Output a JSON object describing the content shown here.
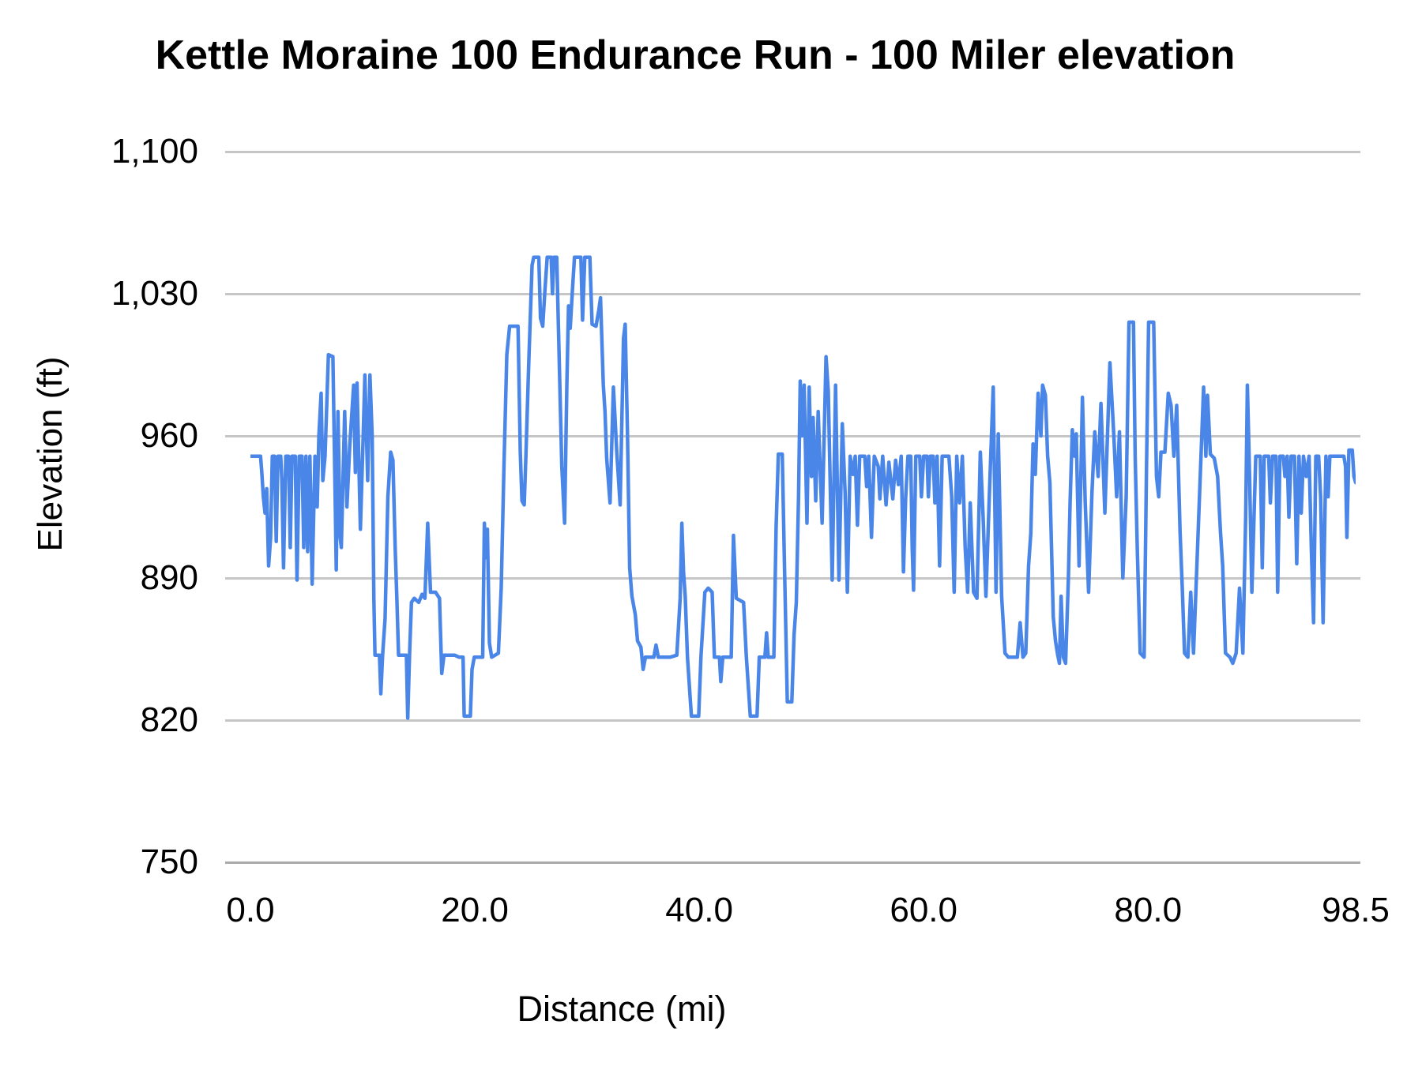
{
  "title": "Kettle Moraine 100 Endurance Run - 100 Miler elevation",
  "chart_data": {
    "type": "line",
    "title": "Kettle Moraine 100 Endurance Run - 100 Miler elevation",
    "xlabel": "Distance (mi)",
    "ylabel": "Elevation (ft)",
    "xlim": [
      0,
      98.5
    ],
    "ylim": [
      750,
      1100
    ],
    "grid": "horizontal",
    "legend": "none",
    "series_name": "elevation",
    "series_color": "#4a86e8",
    "grid_color": "#c6c6c6",
    "axis_text_color": "#000000",
    "y_ticks": [
      {
        "label": "1,100",
        "ft": 1100
      },
      {
        "label": "1,030",
        "ft": 1030
      },
      {
        "label": "960",
        "ft": 960
      },
      {
        "label": "890",
        "ft": 890
      },
      {
        "label": "820",
        "ft": 820
      },
      {
        "label": "750",
        "ft": 750
      }
    ],
    "x_ticks": [
      {
        "label": "0.0",
        "mi": 0
      },
      {
        "label": "20.0",
        "mi": 20
      },
      {
        "label": "40.0",
        "mi": 40
      },
      {
        "label": "60.0",
        "mi": 60
      },
      {
        "label": "80.0",
        "mi": 80
      },
      {
        "label": "98.5",
        "mi": 98.5
      }
    ],
    "points": [
      [
        0,
        950
      ],
      [
        0.9,
        950
      ],
      [
        1.0,
        943
      ],
      [
        1.15,
        930
      ],
      [
        1.3,
        922
      ],
      [
        1.45,
        934
      ],
      [
        1.62,
        896
      ],
      [
        1.8,
        910
      ],
      [
        1.95,
        950
      ],
      [
        2.15,
        950
      ],
      [
        2.3,
        908
      ],
      [
        2.45,
        950
      ],
      [
        2.7,
        950
      ],
      [
        2.8,
        938
      ],
      [
        2.95,
        895
      ],
      [
        3.15,
        950
      ],
      [
        3.4,
        950
      ],
      [
        3.55,
        905
      ],
      [
        3.7,
        950
      ],
      [
        4.0,
        950
      ],
      [
        4.15,
        889
      ],
      [
        4.35,
        950
      ],
      [
        4.6,
        950
      ],
      [
        4.75,
        905
      ],
      [
        4.95,
        950
      ],
      [
        5.1,
        903
      ],
      [
        5.3,
        950
      ],
      [
        5.5,
        887
      ],
      [
        5.75,
        950
      ],
      [
        5.95,
        925
      ],
      [
        6.1,
        960
      ],
      [
        6.3,
        981
      ],
      [
        6.45,
        938
      ],
      [
        6.65,
        950
      ],
      [
        6.95,
        1000
      ],
      [
        7.35,
        999
      ],
      [
        7.55,
        930
      ],
      [
        7.65,
        894
      ],
      [
        7.8,
        972
      ],
      [
        8.0,
        910
      ],
      [
        8.1,
        905
      ],
      [
        8.4,
        972
      ],
      [
        8.6,
        925
      ],
      [
        8.85,
        955
      ],
      [
        9.2,
        985
      ],
      [
        9.35,
        942
      ],
      [
        9.5,
        986
      ],
      [
        9.8,
        914
      ],
      [
        10.05,
        960
      ],
      [
        10.2,
        990
      ],
      [
        10.45,
        938
      ],
      [
        10.65,
        990
      ],
      [
        10.85,
        960
      ],
      [
        11.0,
        880
      ],
      [
        11.1,
        852
      ],
      [
        11.5,
        852
      ],
      [
        11.62,
        833
      ],
      [
        11.78,
        852
      ],
      [
        12.0,
        870
      ],
      [
        12.25,
        930
      ],
      [
        12.5,
        952
      ],
      [
        12.7,
        948
      ],
      [
        12.9,
        905
      ],
      [
        13.05,
        880
      ],
      [
        13.2,
        852
      ],
      [
        13.9,
        852
      ],
      [
        14.02,
        821
      ],
      [
        14.18,
        852
      ],
      [
        14.35,
        878
      ],
      [
        14.6,
        880
      ],
      [
        15.0,
        878
      ],
      [
        15.3,
        882
      ],
      [
        15.55,
        880
      ],
      [
        15.8,
        917
      ],
      [
        16.05,
        883
      ],
      [
        16.5,
        883
      ],
      [
        16.85,
        880
      ],
      [
        17.05,
        843
      ],
      [
        17.25,
        852
      ],
      [
        18.2,
        852
      ],
      [
        18.6,
        851
      ],
      [
        18.95,
        851
      ],
      [
        19.05,
        822
      ],
      [
        19.6,
        822
      ],
      [
        19.75,
        845
      ],
      [
        19.95,
        851
      ],
      [
        20.7,
        851
      ],
      [
        20.85,
        917
      ],
      [
        21.0,
        900
      ],
      [
        21.12,
        914
      ],
      [
        21.3,
        858
      ],
      [
        21.5,
        851
      ],
      [
        22.1,
        853
      ],
      [
        22.35,
        885
      ],
      [
        22.6,
        946
      ],
      [
        22.85,
        1000
      ],
      [
        23.1,
        1014
      ],
      [
        23.85,
        1014
      ],
      [
        24.05,
        952
      ],
      [
        24.2,
        928
      ],
      [
        24.4,
        926
      ],
      [
        24.55,
        950
      ],
      [
        24.8,
        995
      ],
      [
        25.1,
        1044
      ],
      [
        25.25,
        1048
      ],
      [
        25.7,
        1048
      ],
      [
        25.85,
        1018
      ],
      [
        26.05,
        1014
      ],
      [
        26.25,
        1032
      ],
      [
        26.45,
        1048
      ],
      [
        26.8,
        1048
      ],
      [
        26.92,
        1030
      ],
      [
        27.05,
        1048
      ],
      [
        27.3,
        1048
      ],
      [
        27.5,
        1002
      ],
      [
        27.75,
        945
      ],
      [
        28.0,
        917
      ],
      [
        28.2,
        985
      ],
      [
        28.35,
        1024
      ],
      [
        28.5,
        1013
      ],
      [
        28.7,
        1032
      ],
      [
        28.88,
        1048
      ],
      [
        29.45,
        1048
      ],
      [
        29.6,
        1017
      ],
      [
        29.8,
        1048
      ],
      [
        30.25,
        1048
      ],
      [
        30.45,
        1015
      ],
      [
        30.8,
        1014
      ],
      [
        31.05,
        1022
      ],
      [
        31.2,
        1028
      ],
      [
        31.45,
        985
      ],
      [
        31.6,
        972
      ],
      [
        31.75,
        949
      ],
      [
        32.05,
        927
      ],
      [
        32.35,
        984
      ],
      [
        32.65,
        952
      ],
      [
        32.95,
        926
      ],
      [
        33.25,
        1008
      ],
      [
        33.4,
        1015
      ],
      [
        33.6,
        962
      ],
      [
        33.8,
        895
      ],
      [
        34.0,
        881
      ],
      [
        34.3,
        872
      ],
      [
        34.5,
        859
      ],
      [
        34.8,
        856
      ],
      [
        35.0,
        845
      ],
      [
        35.2,
        851
      ],
      [
        35.95,
        851
      ],
      [
        36.15,
        857
      ],
      [
        36.35,
        851
      ],
      [
        37.4,
        851
      ],
      [
        38.0,
        852
      ],
      [
        38.3,
        880
      ],
      [
        38.45,
        917
      ],
      [
        38.6,
        893
      ],
      [
        38.75,
        881
      ],
      [
        38.95,
        851
      ],
      [
        39.3,
        822
      ],
      [
        39.95,
        822
      ],
      [
        40.15,
        851
      ],
      [
        40.5,
        883
      ],
      [
        40.8,
        885
      ],
      [
        41.15,
        883
      ],
      [
        41.35,
        851
      ],
      [
        41.8,
        851
      ],
      [
        41.92,
        839
      ],
      [
        42.1,
        851
      ],
      [
        42.85,
        851
      ],
      [
        43.05,
        911
      ],
      [
        43.3,
        880
      ],
      [
        43.95,
        878
      ],
      [
        44.2,
        851
      ],
      [
        44.55,
        822
      ],
      [
        45.15,
        822
      ],
      [
        45.35,
        851
      ],
      [
        45.85,
        851
      ],
      [
        46.0,
        863
      ],
      [
        46.15,
        851
      ],
      [
        46.65,
        851
      ],
      [
        46.85,
        915
      ],
      [
        47.05,
        951
      ],
      [
        47.4,
        951
      ],
      [
        47.6,
        895
      ],
      [
        47.85,
        829
      ],
      [
        48.25,
        829
      ],
      [
        48.45,
        862
      ],
      [
        48.65,
        878
      ],
      [
        48.85,
        930
      ],
      [
        49.0,
        987
      ],
      [
        49.15,
        960
      ],
      [
        49.35,
        985
      ],
      [
        49.6,
        917
      ],
      [
        49.8,
        984
      ],
      [
        50.0,
        940
      ],
      [
        50.15,
        969
      ],
      [
        50.38,
        928
      ],
      [
        50.6,
        972
      ],
      [
        50.95,
        917
      ],
      [
        51.3,
        999
      ],
      [
        51.5,
        982
      ],
      [
        51.85,
        889
      ],
      [
        52.15,
        985
      ],
      [
        52.45,
        889
      ],
      [
        52.75,
        966
      ],
      [
        53.0,
        932
      ],
      [
        53.2,
        883
      ],
      [
        53.45,
        950
      ],
      [
        53.7,
        941
      ],
      [
        53.9,
        950
      ],
      [
        54.1,
        916
      ],
      [
        54.3,
        950
      ],
      [
        54.75,
        950
      ],
      [
        54.92,
        935
      ],
      [
        55.1,
        950
      ],
      [
        55.35,
        910
      ],
      [
        55.6,
        950
      ],
      [
        55.95,
        945
      ],
      [
        56.1,
        929
      ],
      [
        56.35,
        950
      ],
      [
        56.65,
        926
      ],
      [
        56.9,
        947
      ],
      [
        57.25,
        929
      ],
      [
        57.5,
        948
      ],
      [
        57.75,
        936
      ],
      [
        58.0,
        950
      ],
      [
        58.2,
        893
      ],
      [
        58.4,
        930
      ],
      [
        58.6,
        950
      ],
      [
        58.85,
        950
      ],
      [
        58.98,
        905
      ],
      [
        59.1,
        884
      ],
      [
        59.3,
        950
      ],
      [
        59.65,
        950
      ],
      [
        59.8,
        930
      ],
      [
        60.0,
        950
      ],
      [
        60.3,
        950
      ],
      [
        60.42,
        930
      ],
      [
        60.6,
        950
      ],
      [
        60.85,
        950
      ],
      [
        61.0,
        927
      ],
      [
        61.2,
        950
      ],
      [
        61.42,
        896
      ],
      [
        61.65,
        950
      ],
      [
        62.25,
        950
      ],
      [
        62.5,
        930
      ],
      [
        62.72,
        883
      ],
      [
        62.95,
        950
      ],
      [
        63.2,
        927
      ],
      [
        63.45,
        950
      ],
      [
        63.7,
        905
      ],
      [
        63.92,
        883
      ],
      [
        64.15,
        927
      ],
      [
        64.45,
        883
      ],
      [
        64.75,
        880
      ],
      [
        65.05,
        952
      ],
      [
        65.3,
        920
      ],
      [
        65.55,
        881
      ],
      [
        65.85,
        930
      ],
      [
        66.2,
        984
      ],
      [
        66.45,
        883
      ],
      [
        66.65,
        961
      ],
      [
        66.95,
        881
      ],
      [
        67.25,
        853
      ],
      [
        67.55,
        851
      ],
      [
        68.35,
        851
      ],
      [
        68.6,
        868
      ],
      [
        68.85,
        851
      ],
      [
        69.1,
        853
      ],
      [
        69.35,
        896
      ],
      [
        69.55,
        912
      ],
      [
        69.75,
        956
      ],
      [
        69.95,
        941
      ],
      [
        70.2,
        981
      ],
      [
        70.45,
        960
      ],
      [
        70.6,
        985
      ],
      [
        70.85,
        980
      ],
      [
        71.05,
        950
      ],
      [
        71.25,
        937
      ],
      [
        71.55,
        871
      ],
      [
        71.75,
        859
      ],
      [
        71.95,
        852
      ],
      [
        72.1,
        848
      ],
      [
        72.25,
        881
      ],
      [
        72.45,
        851
      ],
      [
        72.65,
        848
      ],
      [
        72.9,
        890
      ],
      [
        73.05,
        927
      ],
      [
        73.25,
        963
      ],
      [
        73.45,
        950
      ],
      [
        73.6,
        961
      ],
      [
        73.85,
        896
      ],
      [
        74.15,
        979
      ],
      [
        74.4,
        927
      ],
      [
        74.7,
        883
      ],
      [
        75.0,
        932
      ],
      [
        75.25,
        962
      ],
      [
        75.55,
        940
      ],
      [
        75.8,
        976
      ],
      [
        76.15,
        922
      ],
      [
        76.6,
        996
      ],
      [
        76.95,
        960
      ],
      [
        77.2,
        930
      ],
      [
        77.45,
        962
      ],
      [
        77.75,
        890
      ],
      [
        78.05,
        930
      ],
      [
        78.3,
        1016
      ],
      [
        78.7,
        1016
      ],
      [
        78.85,
        950
      ],
      [
        79.05,
        902
      ],
      [
        79.3,
        853
      ],
      [
        79.65,
        851
      ],
      [
        79.85,
        940
      ],
      [
        80.05,
        1016
      ],
      [
        80.5,
        1016
      ],
      [
        80.75,
        940
      ],
      [
        80.95,
        930
      ],
      [
        81.15,
        952
      ],
      [
        81.5,
        952
      ],
      [
        81.8,
        981
      ],
      [
        82.05,
        975
      ],
      [
        82.3,
        950
      ],
      [
        82.55,
        975
      ],
      [
        82.85,
        913
      ],
      [
        83.05,
        885
      ],
      [
        83.25,
        853
      ],
      [
        83.55,
        851
      ],
      [
        83.8,
        883
      ],
      [
        84.05,
        853
      ],
      [
        84.35,
        896
      ],
      [
        84.65,
        940
      ],
      [
        84.95,
        984
      ],
      [
        85.15,
        950
      ],
      [
        85.3,
        980
      ],
      [
        85.55,
        951
      ],
      [
        85.9,
        949
      ],
      [
        86.2,
        940
      ],
      [
        86.45,
        913
      ],
      [
        86.65,
        896
      ],
      [
        86.9,
        853
      ],
      [
        87.3,
        851
      ],
      [
        87.55,
        848
      ],
      [
        87.85,
        853
      ],
      [
        88.15,
        885
      ],
      [
        88.45,
        853
      ],
      [
        88.7,
        920
      ],
      [
        88.85,
        985
      ],
      [
        89.05,
        940
      ],
      [
        89.25,
        883
      ],
      [
        89.6,
        950
      ],
      [
        90.0,
        950
      ],
      [
        90.18,
        895
      ],
      [
        90.35,
        950
      ],
      [
        90.75,
        950
      ],
      [
        90.9,
        927
      ],
      [
        91.1,
        950
      ],
      [
        91.4,
        950
      ],
      [
        91.55,
        883
      ],
      [
        91.75,
        950
      ],
      [
        92.05,
        950
      ],
      [
        92.2,
        940
      ],
      [
        92.4,
        950
      ],
      [
        92.55,
        920
      ],
      [
        92.75,
        950
      ],
      [
        93.05,
        950
      ],
      [
        93.25,
        897
      ],
      [
        93.45,
        950
      ],
      [
        93.65,
        922
      ],
      [
        93.85,
        950
      ],
      [
        94.1,
        940
      ],
      [
        94.35,
        950
      ],
      [
        94.55,
        905
      ],
      [
        94.75,
        868
      ],
      [
        94.95,
        950
      ],
      [
        95.2,
        950
      ],
      [
        95.38,
        930
      ],
      [
        95.6,
        868
      ],
      [
        95.85,
        950
      ],
      [
        96.05,
        930
      ],
      [
        96.2,
        950
      ],
      [
        97.45,
        950
      ],
      [
        97.6,
        945
      ],
      [
        97.72,
        910
      ],
      [
        97.9,
        953
      ],
      [
        98.2,
        953
      ],
      [
        98.35,
        940
      ],
      [
        98.5,
        937
      ]
    ]
  }
}
